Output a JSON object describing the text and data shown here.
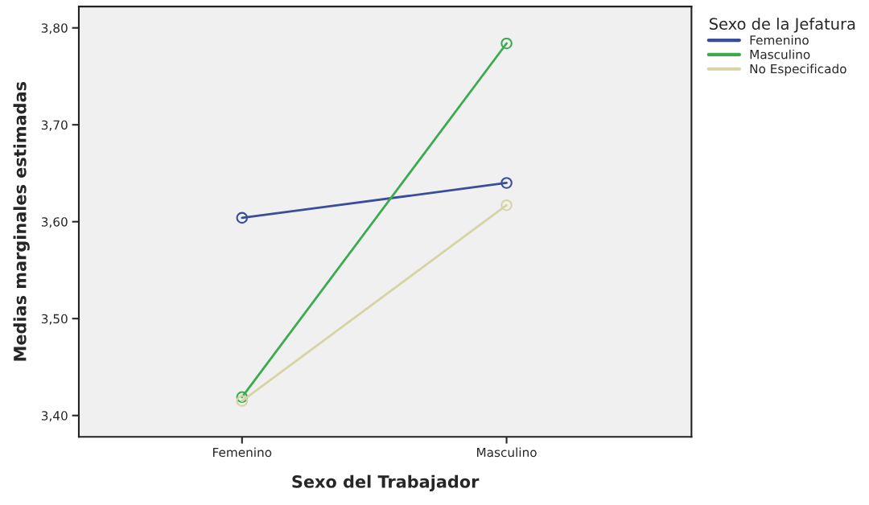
{
  "chart_data": {
    "type": "line",
    "xlabel": "Sexo del Trabajador",
    "ylabel": "Medias marginales estimadas",
    "legend_title": "Sexo de la Jefatura",
    "categories": [
      "Femenino",
      "Masculino"
    ],
    "series": [
      {
        "name": "Femenino",
        "color": "#3a4d9a",
        "values": [
          3.604,
          3.64
        ]
      },
      {
        "name": "Masculino",
        "color": "#3bab4f",
        "values": [
          3.419,
          3.784
        ]
      },
      {
        "name": "No Especificado",
        "color": "#d6d3a5",
        "values": [
          3.415,
          3.617
        ]
      }
    ],
    "ylim": [
      3.378,
      3.822
    ],
    "yticks": [
      {
        "value": 3.4,
        "label": "3,40"
      },
      {
        "value": 3.5,
        "label": "3,50"
      },
      {
        "value": 3.6,
        "label": "3,60"
      },
      {
        "value": 3.7,
        "label": "3,70"
      },
      {
        "value": 3.8,
        "label": "3,80"
      }
    ],
    "grid": false,
    "legend": "top right",
    "marker": "circle",
    "line_style": "solid"
  }
}
